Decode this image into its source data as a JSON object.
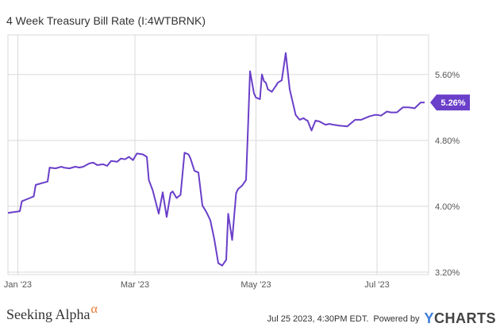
{
  "title": "4 Week Treasury Bill Rate (I:4WTBRNK)",
  "footer": {
    "brand_text": "Seeking Alpha",
    "brand_symbol": "α",
    "timestamp": "Jul 25 2023, 4:30PM EDT.",
    "powered_by": "Powered by",
    "ycharts_y": "Y",
    "ycharts_rest": "CHARTS"
  },
  "colors": {
    "line": "#6a3fc9",
    "badge_bg": "#6a3fc9",
    "badge_text": "#ffffff",
    "grid": "#d9d9d9",
    "axis_text": "#555555"
  },
  "chart_data": {
    "type": "line",
    "title": "4 Week Treasury Bill Rate (I:4WTBRNK)",
    "xlabel": "",
    "ylabel": "",
    "x_tick_labels": [
      "Jan '23",
      "Mar '23",
      "May '23",
      "Jul '23"
    ],
    "x_tick_dates": [
      "2023-01-01",
      "2023-03-01",
      "2023-05-01",
      "2023-07-01"
    ],
    "y_tick_labels": [
      "3.20%",
      "4.00%",
      "4.80%",
      "5.60%"
    ],
    "y_ticks": [
      3.2,
      4.0,
      4.8,
      5.6
    ],
    "ylim": [
      3.17,
      6.08
    ],
    "xlim": [
      "2022-12-27",
      "2023-07-27"
    ],
    "grid": true,
    "last_value": 5.26,
    "last_value_label": "5.26%",
    "series": [
      {
        "x": [
          "2022-12-27",
          "2022-12-30",
          "2023-01-02",
          "2023-01-03",
          "2023-01-06",
          "2023-01-07",
          "2023-01-09",
          "2023-01-10",
          "2023-01-13",
          "2023-01-16",
          "2023-01-17",
          "2023-01-20",
          "2023-01-23",
          "2023-01-24",
          "2023-01-27",
          "2023-01-30",
          "2023-02-01",
          "2023-02-03",
          "2023-02-06",
          "2023-02-08",
          "2023-02-10",
          "2023-02-13",
          "2023-02-15",
          "2023-02-17",
          "2023-02-20",
          "2023-02-22",
          "2023-02-24",
          "2023-02-26",
          "2023-02-28",
          "2023-03-02",
          "2023-03-05",
          "2023-03-07",
          "2023-03-08",
          "2023-03-10",
          "2023-03-13",
          "2023-03-15",
          "2023-03-17",
          "2023-03-19",
          "2023-03-20",
          "2023-03-22",
          "2023-03-24",
          "2023-03-26",
          "2023-03-28",
          "2023-03-29",
          "2023-03-31",
          "2023-04-02",
          "2023-04-04",
          "2023-04-06",
          "2023-04-08",
          "2023-04-10",
          "2023-04-12",
          "2023-04-14",
          "2023-04-16",
          "2023-04-17",
          "2023-04-19",
          "2023-04-21",
          "2023-04-22",
          "2023-04-24",
          "2023-04-26",
          "2023-04-27",
          "2023-04-28",
          "2023-04-30",
          "2023-05-01",
          "2023-05-03",
          "2023-05-04",
          "2023-05-05",
          "2023-05-06",
          "2023-05-07",
          "2023-05-09",
          "2023-05-11",
          "2023-05-12",
          "2023-05-14",
          "2023-05-16",
          "2023-05-18",
          "2023-05-21",
          "2023-05-23",
          "2023-05-25",
          "2023-05-26",
          "2023-05-27",
          "2023-05-29",
          "2023-05-31",
          "2023-06-02",
          "2023-06-05",
          "2023-06-07",
          "2023-06-09",
          "2023-06-12",
          "2023-06-16",
          "2023-06-20",
          "2023-06-23",
          "2023-06-27",
          "2023-06-30",
          "2023-07-01",
          "2023-07-03",
          "2023-07-06",
          "2023-07-08",
          "2023-07-11",
          "2023-07-14",
          "2023-07-17",
          "2023-07-20",
          "2023-07-23",
          "2023-07-25"
        ],
        "y": [
          3.92,
          3.93,
          3.94,
          4.06,
          4.09,
          4.1,
          4.12,
          4.26,
          4.28,
          4.3,
          4.47,
          4.46,
          4.48,
          4.47,
          4.46,
          4.48,
          4.47,
          4.48,
          4.52,
          4.53,
          4.5,
          4.51,
          4.49,
          4.55,
          4.54,
          4.58,
          4.57,
          4.6,
          4.56,
          4.64,
          4.63,
          4.6,
          4.32,
          4.19,
          3.91,
          4.17,
          3.87,
          4.16,
          4.18,
          4.1,
          4.14,
          4.65,
          4.63,
          4.58,
          4.43,
          4.41,
          4.01,
          3.93,
          3.83,
          3.6,
          3.31,
          3.28,
          3.35,
          3.91,
          3.59,
          4.16,
          4.21,
          4.25,
          4.32,
          4.96,
          5.64,
          5.37,
          5.32,
          5.3,
          5.6,
          5.52,
          5.5,
          5.42,
          5.39,
          5.46,
          5.5,
          5.53,
          5.86,
          5.42,
          5.11,
          5.05,
          5.07,
          5.05,
          5.04,
          4.92,
          5.04,
          5.03,
          4.99,
          5.0,
          4.99,
          4.98,
          4.97,
          5.05,
          5.05,
          5.09,
          5.11,
          5.11,
          5.1,
          5.15,
          5.14,
          5.14,
          5.2,
          5.2,
          5.19,
          5.26,
          5.26
        ]
      }
    ]
  }
}
